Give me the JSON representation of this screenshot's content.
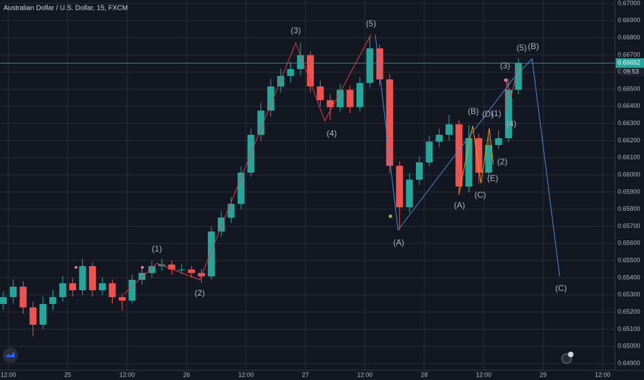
{
  "chart_data": {
    "type": "candlestick",
    "title": "Australian Dollar / U.S. Dollar, 15, FXCM",
    "x": [
      -13,
      -11,
      -9,
      -7,
      -5,
      -3,
      -1,
      1,
      3,
      5,
      7,
      9,
      11,
      13,
      15,
      17,
      19,
      21,
      23,
      25,
      27,
      29,
      31,
      33,
      35,
      37,
      39,
      41,
      43,
      45,
      47,
      49,
      51,
      53,
      55,
      57,
      59,
      61,
      63,
      65,
      67,
      69,
      71,
      73,
      75,
      77,
      79,
      81,
      83,
      85,
      87,
      89,
      91
    ],
    "open": [
      0.65247,
      0.65287,
      0.65348,
      0.65227,
      0.65126,
      0.65247,
      0.65287,
      0.65368,
      0.65327,
      0.65468,
      0.65327,
      0.65368,
      0.65287,
      0.65267,
      0.65388,
      0.65428,
      0.65468,
      0.65477,
      0.65448,
      0.65448,
      0.65428,
      0.65408,
      0.6567,
      0.65751,
      0.65831,
      0.66013,
      0.66234,
      0.66375,
      0.66516,
      0.66577,
      0.66617,
      0.66698,
      0.66516,
      0.66436,
      0.66395,
      0.66496,
      0.66395,
      0.66536,
      0.66738,
      0.66557,
      0.66053,
      0.65811,
      0.65972,
      0.66073,
      0.66194,
      0.66234,
      0.66295,
      0.65932,
      0.66214,
      0.66013,
      0.66174,
      0.66214,
      0.66496
    ],
    "high": [
      0.6532,
      0.6539,
      0.6538,
      0.6526,
      0.6529,
      0.6533,
      0.6541,
      0.654,
      0.6551,
      0.6549,
      0.654,
      0.6539,
      0.6531,
      0.6542,
      0.6546,
      0.655,
      0.6551,
      0.655,
      0.6548,
      0.6547,
      0.6545,
      0.657,
      0.6579,
      0.6587,
      0.6605,
      0.6627,
      0.6642,
      0.6656,
      0.6662,
      0.6666,
      0.6677,
      0.6672,
      0.6655,
      0.6647,
      0.6653,
      0.6652,
      0.6657,
      0.6681,
      0.6676,
      0.6659,
      0.6608,
      0.6601,
      0.6611,
      0.6623,
      0.6627,
      0.6635,
      0.6632,
      0.6629,
      0.6624,
      0.6622,
      0.6626,
      0.6656,
      0.6668
    ],
    "low": [
      0.6521,
      0.6525,
      0.6519,
      0.6506,
      0.651,
      0.6521,
      0.6526,
      0.6529,
      0.653,
      0.6529,
      0.653,
      0.6525,
      0.6521,
      0.6525,
      0.6536,
      0.654,
      0.6544,
      0.6542,
      0.6542,
      0.654,
      0.6537,
      0.6539,
      0.6564,
      0.6572,
      0.658,
      0.6599,
      0.662,
      0.6634,
      0.6648,
      0.6654,
      0.6658,
      0.6648,
      0.664,
      0.6632,
      0.6637,
      0.6636,
      0.6637,
      0.6651,
      0.6652,
      0.6601,
      0.6568,
      0.6578,
      0.6594,
      0.6605,
      0.6616,
      0.662,
      0.6589,
      0.659,
      0.6595,
      0.6599,
      0.6615,
      0.6619,
      0.6647
    ],
    "close": [
      0.65287,
      0.65348,
      0.65227,
      0.65126,
      0.65247,
      0.65287,
      0.65368,
      0.65327,
      0.65468,
      0.65327,
      0.65368,
      0.65287,
      0.65267,
      0.65388,
      0.65428,
      0.65468,
      0.65477,
      0.65448,
      0.65448,
      0.65428,
      0.65408,
      0.6567,
      0.65751,
      0.65831,
      0.66013,
      0.66234,
      0.66375,
      0.66516,
      0.66577,
      0.66617,
      0.66698,
      0.66516,
      0.66436,
      0.66395,
      0.66496,
      0.66395,
      0.66536,
      0.66738,
      0.66557,
      0.66053,
      0.65811,
      0.65972,
      0.66073,
      0.66194,
      0.66234,
      0.66295,
      0.65932,
      0.66214,
      0.66013,
      0.66174,
      0.66214,
      0.66496,
      0.66652
    ],
    "up_color": "#26a69a",
    "down_color": "#ef5350",
    "last_price": 0.66652,
    "countdown": "09:53",
    "xlim": [
      -13.67,
      110.5
    ],
    "xticks": [
      {
        "value": -12,
        "label": "12:00"
      },
      {
        "value": 0,
        "label": "25"
      },
      {
        "value": 12,
        "label": "12:00"
      },
      {
        "value": 24,
        "label": "26"
      },
      {
        "value": 36,
        "label": "12:00"
      },
      {
        "value": 48,
        "label": "27"
      },
      {
        "value": 60,
        "label": "12:00"
      },
      {
        "value": 72,
        "label": "28"
      },
      {
        "value": 84,
        "label": "12:00"
      },
      {
        "value": 96,
        "label": "29"
      },
      {
        "value": 108,
        "label": "12:00"
      }
    ],
    "ylim": [
      0.6486,
      0.6702
    ],
    "yticks": [
      {
        "value": 0.649,
        "label": "0.64900"
      },
      {
        "value": 0.65,
        "label": "0.65000"
      },
      {
        "value": 0.651,
        "label": "0.65100"
      },
      {
        "value": 0.652,
        "label": "0.65200"
      },
      {
        "value": 0.653,
        "label": "0.65300"
      },
      {
        "value": 0.654,
        "label": "0.65400"
      },
      {
        "value": 0.655,
        "label": "0.65500"
      },
      {
        "value": 0.656,
        "label": "0.65600"
      },
      {
        "value": 0.657,
        "label": "0.65700"
      },
      {
        "value": 0.658,
        "label": "0.65800"
      },
      {
        "value": 0.659,
        "label": "0.65900"
      },
      {
        "value": 0.66,
        "label": "0.66000"
      },
      {
        "value": 0.661,
        "label": "0.66100"
      },
      {
        "value": 0.662,
        "label": "0.66200"
      },
      {
        "value": 0.663,
        "label": "0.66300"
      },
      {
        "value": 0.664,
        "label": "0.66400"
      },
      {
        "value": 0.665,
        "label": "0.66500"
      },
      {
        "value": 0.666,
        "label": "0.66600"
      },
      {
        "value": 0.667,
        "label": "0.66700"
      },
      {
        "value": 0.668,
        "label": "0.66800"
      },
      {
        "value": 0.669,
        "label": "0.66900"
      },
      {
        "value": 0.67,
        "label": "0.67000"
      }
    ],
    "grid": true,
    "annotations": [
      {
        "text": "(1)",
        "color": "#f23645"
      },
      {
        "text": "(2)",
        "color": "#f23645"
      },
      {
        "text": "(3)",
        "color": "#f23645"
      },
      {
        "text": "(4)",
        "color": "#f23645"
      },
      {
        "text": "(5)",
        "color": "#f23645"
      },
      {
        "text": "(3)",
        "color": "#f23645"
      },
      {
        "text": "(1)",
        "color": "#f23645"
      },
      {
        "text": "(4)",
        "color": "#f23645"
      },
      {
        "text": "(2)",
        "color": "#f23645"
      },
      {
        "text": "(5)",
        "color": "#f23645"
      },
      {
        "text": "(A)",
        "color": "#ff9800"
      },
      {
        "text": "(B)",
        "color": "#ff9800"
      },
      {
        "text": "(C)",
        "color": "#ff9800"
      },
      {
        "text": "(D)",
        "color": "#ff9800"
      },
      {
        "text": "(E)",
        "color": "#ff9800"
      },
      {
        "text": "(A)",
        "color": "#4a90d9"
      },
      {
        "text": "(B)",
        "color": "#4a90d9"
      },
      {
        "text": "(C)",
        "color": "#4a90d9"
      }
    ]
  }
}
